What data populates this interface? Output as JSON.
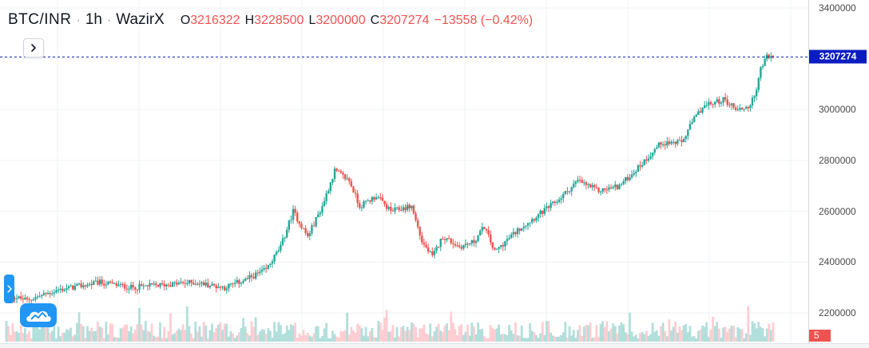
{
  "header": {
    "symbol": "BTC/INR",
    "interval": "1h",
    "exchange": "WazirX",
    "ohlc": {
      "open_key": "O",
      "open": "3216322",
      "high_key": "H",
      "high": "3228500",
      "low_key": "L",
      "low": "3200000",
      "close_key": "C",
      "close": "3207274",
      "change": "−13558 (−0.42%)"
    }
  },
  "price_axis": {
    "ticks": [
      "3400000",
      "3200000",
      "3000000",
      "2800000",
      "2600000",
      "2400000",
      "2200000"
    ],
    "last_price": "3207274",
    "volume_label": "5"
  },
  "icons": {
    "expand": "chevron-right-icon",
    "side_toggle": "chevron-right-icon",
    "logo": "tradingview-cloud-logo"
  },
  "colors": {
    "up": "#26a69a",
    "down": "#ef5350",
    "last_price_line": "#0c1dbf",
    "volume_up": "#b2dfdb",
    "volume_down": "#ffcdd2"
  },
  "chart_data": {
    "type": "candlestick",
    "symbol": "BTC/INR",
    "interval": "1h",
    "exchange": "WazirX",
    "ylim": [
      2100000,
      3400000
    ],
    "grid": true,
    "y_ticks": [
      2200000,
      2400000,
      2600000,
      2800000,
      3000000,
      3200000,
      3400000
    ],
    "last_price": 3207274,
    "approx_close_path": [
      [
        0,
        2270000
      ],
      [
        10,
        2250000
      ],
      [
        25,
        2290000
      ],
      [
        45,
        2320000
      ],
      [
        60,
        2300000
      ],
      [
        75,
        2310000
      ],
      [
        90,
        2320000
      ],
      [
        105,
        2300000
      ],
      [
        115,
        2330000
      ],
      [
        125,
        2370000
      ],
      [
        132,
        2460000
      ],
      [
        138,
        2600000
      ],
      [
        145,
        2500000
      ],
      [
        152,
        2620000
      ],
      [
        158,
        2760000
      ],
      [
        165,
        2720000
      ],
      [
        170,
        2620000
      ],
      [
        178,
        2660000
      ],
      [
        185,
        2600000
      ],
      [
        195,
        2620000
      ],
      [
        200,
        2480000
      ],
      [
        205,
        2420000
      ],
      [
        210,
        2500000
      ],
      [
        218,
        2460000
      ],
      [
        225,
        2480000
      ],
      [
        230,
        2540000
      ],
      [
        235,
        2440000
      ],
      [
        240,
        2480000
      ],
      [
        248,
        2540000
      ],
      [
        255,
        2580000
      ],
      [
        265,
        2640000
      ],
      [
        275,
        2720000
      ],
      [
        285,
        2680000
      ],
      [
        295,
        2700000
      ],
      [
        305,
        2780000
      ],
      [
        315,
        2870000
      ],
      [
        325,
        2870000
      ],
      [
        330,
        2950000
      ],
      [
        335,
        3010000
      ],
      [
        345,
        3040000
      ],
      [
        352,
        3000000
      ],
      [
        357,
        3010000
      ],
      [
        360,
        3050000
      ],
      [
        363,
        3160000
      ],
      [
        366,
        3210000
      ],
      [
        369,
        3207274
      ]
    ]
  }
}
